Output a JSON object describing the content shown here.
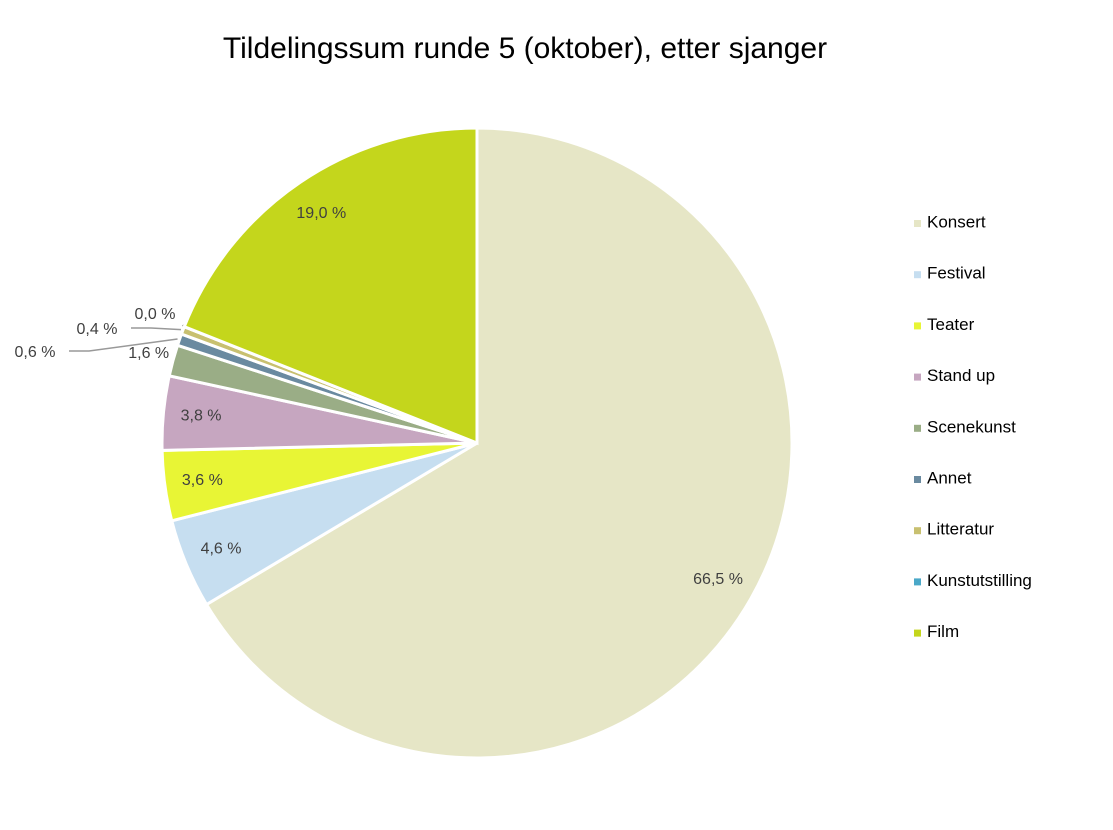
{
  "chart_data": {
    "type": "pie",
    "title": "Tildelingssum runde 5 (oktober), etter sjanger",
    "categories": [
      "Konsert",
      "Festival",
      "Teater",
      "Stand up",
      "Scenekunst",
      "Annet",
      "Litteratur",
      "Kunstutstilling",
      "Film"
    ],
    "values": [
      66.5,
      4.6,
      3.6,
      3.8,
      1.6,
      0.6,
      0.4,
      0.0,
      19.0
    ],
    "value_labels": [
      "66,5 %",
      "4,6 %",
      "3,6 %",
      "3,8 %",
      "1,6 %",
      "0,6 %",
      "0,4 %",
      "0,0 %",
      "19,0 %"
    ],
    "colors": [
      "#e6e6c6",
      "#c6def0",
      "#e8f535",
      "#c6a6c0",
      "#9aad86",
      "#6a8aa0",
      "#c8c070",
      "#4aa8c8",
      "#c4d61c"
    ],
    "legend": "right"
  }
}
